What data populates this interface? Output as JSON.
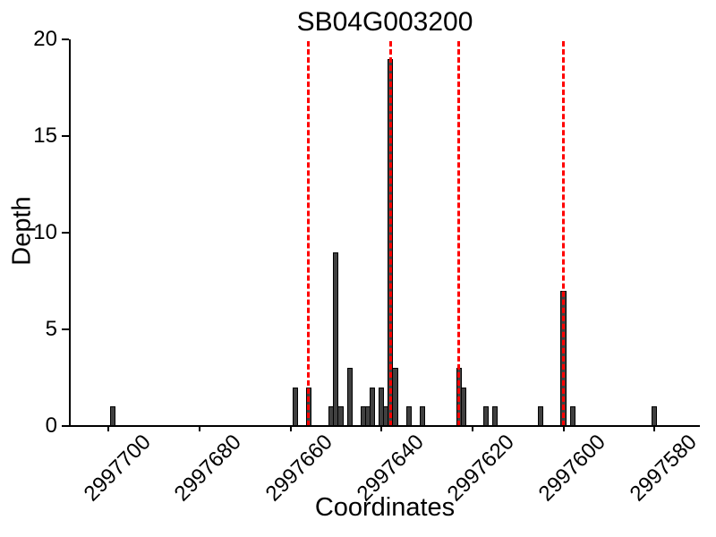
{
  "chart_data": {
    "type": "bar",
    "title": "SB04G003200",
    "xlabel": "Coordinates",
    "ylabel": "Depth",
    "x_axis_reversed": true,
    "xlim_left": 2997708.5,
    "xlim_right": 2997570,
    "ylim": [
      0,
      20
    ],
    "grid": false,
    "x_tick_values": [
      2997700,
      2997680,
      2997660,
      2997640,
      2997620,
      2997600,
      2997580
    ],
    "x_tick_labels": [
      "2997700",
      "2997680",
      "2997660",
      "2997640",
      "2997620",
      "2997600",
      "2997580"
    ],
    "y_tick_values": [
      0,
      5,
      10,
      15,
      20
    ],
    "y_tick_labels": [
      "0",
      "5",
      "10",
      "15",
      "20"
    ],
    "bar_width_units": 1,
    "bars": [
      {
        "coordinate": 2997699,
        "depth": 1
      },
      {
        "coordinate": 2997659,
        "depth": 2
      },
      {
        "coordinate": 2997656,
        "depth": 2
      },
      {
        "coordinate": 2997651,
        "depth": 1
      },
      {
        "coordinate": 2997650,
        "depth": 9
      },
      {
        "coordinate": 2997649,
        "depth": 1
      },
      {
        "coordinate": 2997647,
        "depth": 3
      },
      {
        "coordinate": 2997644,
        "depth": 1
      },
      {
        "coordinate": 2997643,
        "depth": 1
      },
      {
        "coordinate": 2997642,
        "depth": 2
      },
      {
        "coordinate": 2997640,
        "depth": 2
      },
      {
        "coordinate": 2997639,
        "depth": 1
      },
      {
        "coordinate": 2997638,
        "depth": 19
      },
      {
        "coordinate": 2997637,
        "depth": 3
      },
      {
        "coordinate": 2997634,
        "depth": 1
      },
      {
        "coordinate": 2997631,
        "depth": 1
      },
      {
        "coordinate": 2997623,
        "depth": 3
      },
      {
        "coordinate": 2997622,
        "depth": 2
      },
      {
        "coordinate": 2997617,
        "depth": 1
      },
      {
        "coordinate": 2997615,
        "depth": 1
      },
      {
        "coordinate": 2997605,
        "depth": 1
      },
      {
        "coordinate": 2997600,
        "depth": 7
      },
      {
        "coordinate": 2997598,
        "depth": 1
      },
      {
        "coordinate": 2997580,
        "depth": 1
      }
    ],
    "marker_lines": {
      "positions": [
        2997656,
        2997638,
        2997623,
        2997600
      ],
      "style": "dashed",
      "color": "#ff0000"
    },
    "colors": {
      "bar_fill": "#404040",
      "bar_edge": "#000000",
      "axis": "#000000",
      "marker": "#ff0000",
      "background": "#ffffff"
    },
    "legend": null
  }
}
